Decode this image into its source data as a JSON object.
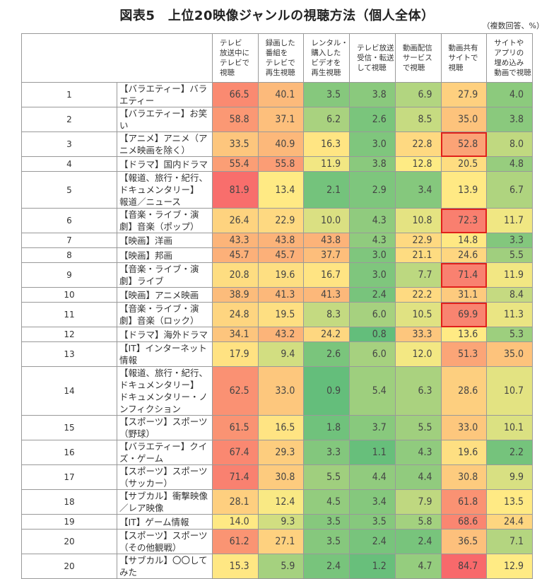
{
  "title": "図表5　上位20映像ジャンルの視聴方法（個人全体）",
  "note": "（複数回答、%）",
  "chart_data": {
    "type": "heatmap",
    "title": "図表5　上位20映像ジャンルの視聴方法（個人全体）",
    "unit_note": "（複数回答、%）",
    "color_scale": {
      "low": "#63BE7B",
      "mid": "#FFEB84",
      "high": "#F8696B"
    },
    "highlight_border_color": "#E0201B",
    "columns": [
      "テレビ\n放送中に\nテレビで\n視聴",
      "録画した\n番組を\nテレビで\n再生視聴",
      "レンタル・\n購入した\nビデオを\n再生視聴",
      "テレビ放送\n受信・転送\nして視聴",
      "動画配信\nサービス\nで視聴",
      "動画共有\nサイトで\n視聴",
      "サイトや\nアプリの\n埋め込み\n動画で視聴"
    ],
    "rows": [
      {
        "rank": "1",
        "label": "【バラエティー】バラエティー",
        "values": [
          66.5,
          40.1,
          3.5,
          3.8,
          6.9,
          27.9,
          4.0
        ],
        "highlight": []
      },
      {
        "rank": "2",
        "label": "【バラエティー】お笑い",
        "values": [
          58.8,
          37.1,
          6.2,
          2.6,
          8.5,
          35.0,
          3.8
        ],
        "highlight": []
      },
      {
        "rank": "3",
        "label": "【アニメ】アニメ（アニメ映画を除く）",
        "values": [
          33.5,
          40.9,
          16.3,
          3.0,
          22.8,
          52.8,
          8.0
        ],
        "highlight": [
          5
        ]
      },
      {
        "rank": "4",
        "label": "【ドラマ】国内ドラマ",
        "values": [
          55.4,
          55.8,
          11.9,
          3.8,
          12.8,
          20.5,
          4.8
        ],
        "highlight": []
      },
      {
        "rank": "5",
        "label": "【報道、旅行・紀行、ドキュメンタリー】\n報道／ニュース",
        "values": [
          81.9,
          13.4,
          2.1,
          2.9,
          3.4,
          13.9,
          6.7
        ],
        "highlight": []
      },
      {
        "rank": "6",
        "label": "【音楽・ライブ・演劇】音楽（ポップ）",
        "values": [
          26.4,
          22.9,
          10.0,
          4.3,
          10.8,
          72.3,
          11.7
        ],
        "highlight": [
          5
        ]
      },
      {
        "rank": "7",
        "label": "【映画】洋画",
        "values": [
          43.3,
          43.8,
          43.8,
          4.3,
          22.9,
          14.8,
          3.3
        ],
        "highlight": []
      },
      {
        "rank": "8",
        "label": "【映画】邦画",
        "values": [
          45.7,
          45.7,
          37.7,
          3.0,
          21.1,
          24.6,
          5.5
        ],
        "highlight": []
      },
      {
        "rank": "9",
        "label": "【音楽・ライブ・演劇】ライブ",
        "values": [
          20.8,
          19.6,
          16.7,
          3.0,
          7.7,
          71.4,
          11.9
        ],
        "highlight": [
          5
        ]
      },
      {
        "rank": "10",
        "label": "【映画】アニメ映画",
        "values": [
          38.9,
          41.3,
          41.3,
          2.4,
          22.2,
          31.1,
          8.4
        ],
        "highlight": []
      },
      {
        "rank": "11",
        "label": "【音楽・ライブ・演劇】音楽（ロック）",
        "values": [
          24.8,
          19.5,
          8.3,
          6.0,
          10.5,
          69.9,
          11.3
        ],
        "highlight": [
          5
        ]
      },
      {
        "rank": "12",
        "label": "【ドラマ】海外ドラマ",
        "values": [
          34.1,
          43.2,
          24.2,
          0.8,
          33.3,
          13.6,
          5.3
        ],
        "highlight": []
      },
      {
        "rank": "13",
        "label": "【IT】インターネット情報",
        "values": [
          17.9,
          9.4,
          2.6,
          6.0,
          12.0,
          51.3,
          35.0
        ],
        "highlight": []
      },
      {
        "rank": "14",
        "label": "【報道、旅行・紀行、ドキュメンタリー】\nドキュメンタリー・ノンフィクション",
        "values": [
          62.5,
          33.0,
          0.9,
          5.4,
          6.3,
          28.6,
          10.7
        ],
        "highlight": []
      },
      {
        "rank": "15",
        "label": "【スポーツ】スポーツ（野球）",
        "values": [
          61.5,
          16.5,
          1.8,
          3.7,
          5.5,
          33.0,
          10.1
        ],
        "highlight": []
      },
      {
        "rank": "16",
        "label": "【バラエティー】クイズ・ゲーム",
        "values": [
          67.4,
          29.3,
          3.3,
          1.1,
          4.3,
          19.6,
          2.2
        ],
        "highlight": []
      },
      {
        "rank": "17",
        "label": "【スポーツ】スポーツ（サッカー）",
        "values": [
          71.4,
          30.8,
          5.5,
          4.4,
          4.4,
          30.8,
          9.9
        ],
        "highlight": []
      },
      {
        "rank": "18",
        "label": "【サブカル】衝撃映像／レア映像",
        "values": [
          28.1,
          12.4,
          4.5,
          3.4,
          7.9,
          61.8,
          13.5
        ],
        "highlight": []
      },
      {
        "rank": "19",
        "label": "【IT】ゲーム情報",
        "values": [
          14.0,
          9.3,
          3.5,
          3.5,
          5.8,
          68.6,
          24.4
        ],
        "highlight": []
      },
      {
        "rank": "20",
        "label": "【スポーツ】スポーツ（その他観戦）",
        "values": [
          61.2,
          27.1,
          3.5,
          2.4,
          2.4,
          36.5,
          7.1
        ],
        "highlight": []
      },
      {
        "rank": "20",
        "label": "【サブカル】〇〇してみた",
        "values": [
          15.3,
          5.9,
          2.4,
          1.2,
          4.7,
          84.7,
          12.9
        ],
        "highlight": []
      }
    ]
  }
}
